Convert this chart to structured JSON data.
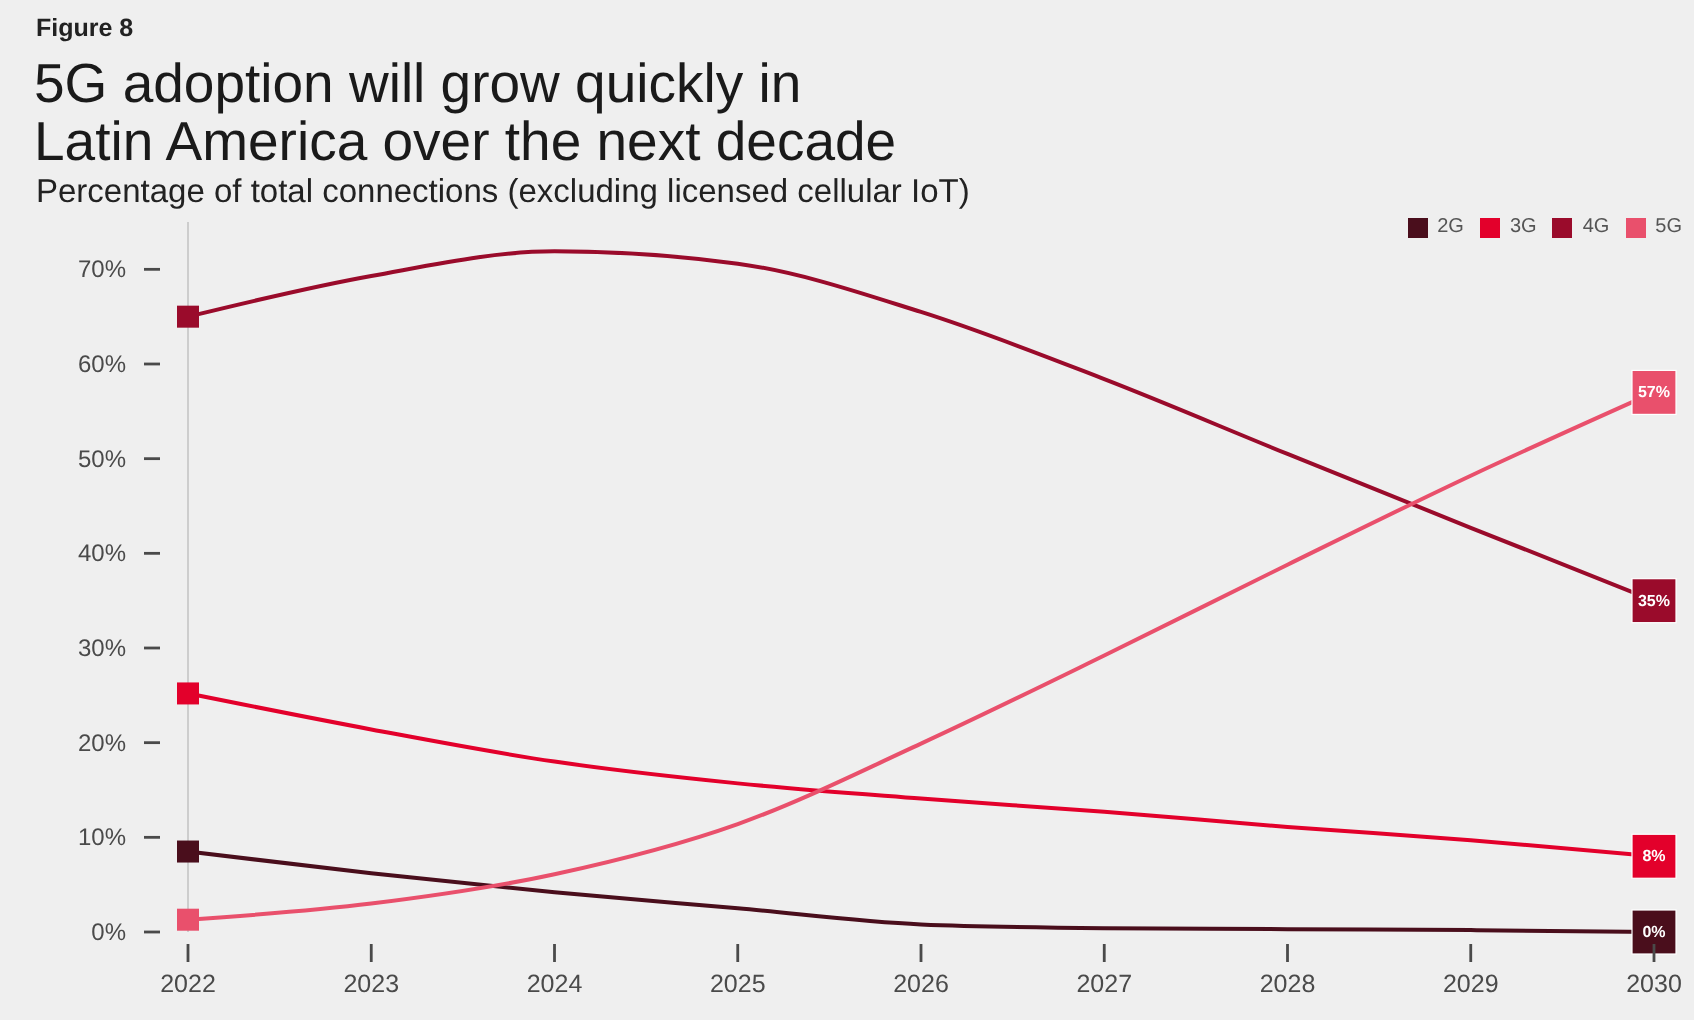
{
  "chart_data": {
    "type": "line",
    "title": "5G adoption will grow quickly in Latin America over the next decade",
    "subtitle": "Percentage of total connections (excluding licensed cellular IoT)",
    "annotations": [
      "Figure 8"
    ],
    "x": [
      2022,
      2023,
      2024,
      2025,
      2026,
      2027,
      2028,
      2029,
      2030
    ],
    "xlim": [
      2022,
      2030
    ],
    "xticks": [
      2022,
      2023,
      2024,
      2025,
      2026,
      2027,
      2028,
      2029,
      2030
    ],
    "ylim": [
      0,
      75
    ],
    "yticks": [
      {
        "value": 0,
        "label": "0%"
      },
      {
        "value": 10,
        "label": "10%"
      },
      {
        "value": 20,
        "label": "20%"
      },
      {
        "value": 30,
        "label": "30%"
      },
      {
        "value": 40,
        "label": "40%"
      },
      {
        "value": 50,
        "label": "50%"
      },
      {
        "value": 60,
        "label": "60%"
      },
      {
        "value": 70,
        "label": "70%"
      }
    ],
    "series": [
      {
        "name": "2G",
        "color": "#4a0e1c",
        "values": [
          8.5,
          6.2,
          4.2,
          2.5,
          0.8,
          0.4,
          0.3,
          0.2,
          0
        ],
        "value_labels": [
          null,
          null,
          null,
          null,
          null,
          null,
          null,
          null,
          "0%"
        ]
      },
      {
        "name": "3G",
        "color": "#e3002b",
        "values": [
          25.2,
          21.4,
          18.0,
          15.7,
          14.1,
          12.7,
          11.1,
          9.7,
          8
        ],
        "value_labels": [
          null,
          null,
          null,
          null,
          null,
          null,
          null,
          null,
          "8%"
        ]
      },
      {
        "name": "4G",
        "color": "#9a0b2b",
        "values": [
          65,
          69.3,
          71.9,
          70.6,
          65.5,
          58.4,
          50.5,
          42.7,
          35
        ],
        "value_labels": [
          null,
          null,
          null,
          null,
          null,
          null,
          null,
          null,
          "35%"
        ]
      },
      {
        "name": "5G",
        "color": "#e9506c",
        "values": [
          1.3,
          3.0,
          6.1,
          11.4,
          19.9,
          29.2,
          38.8,
          48.2,
          57
        ],
        "value_labels": [
          null,
          null,
          null,
          null,
          null,
          null,
          null,
          null,
          "57%"
        ]
      }
    ],
    "legend": "top right",
    "line_style": "solid"
  }
}
